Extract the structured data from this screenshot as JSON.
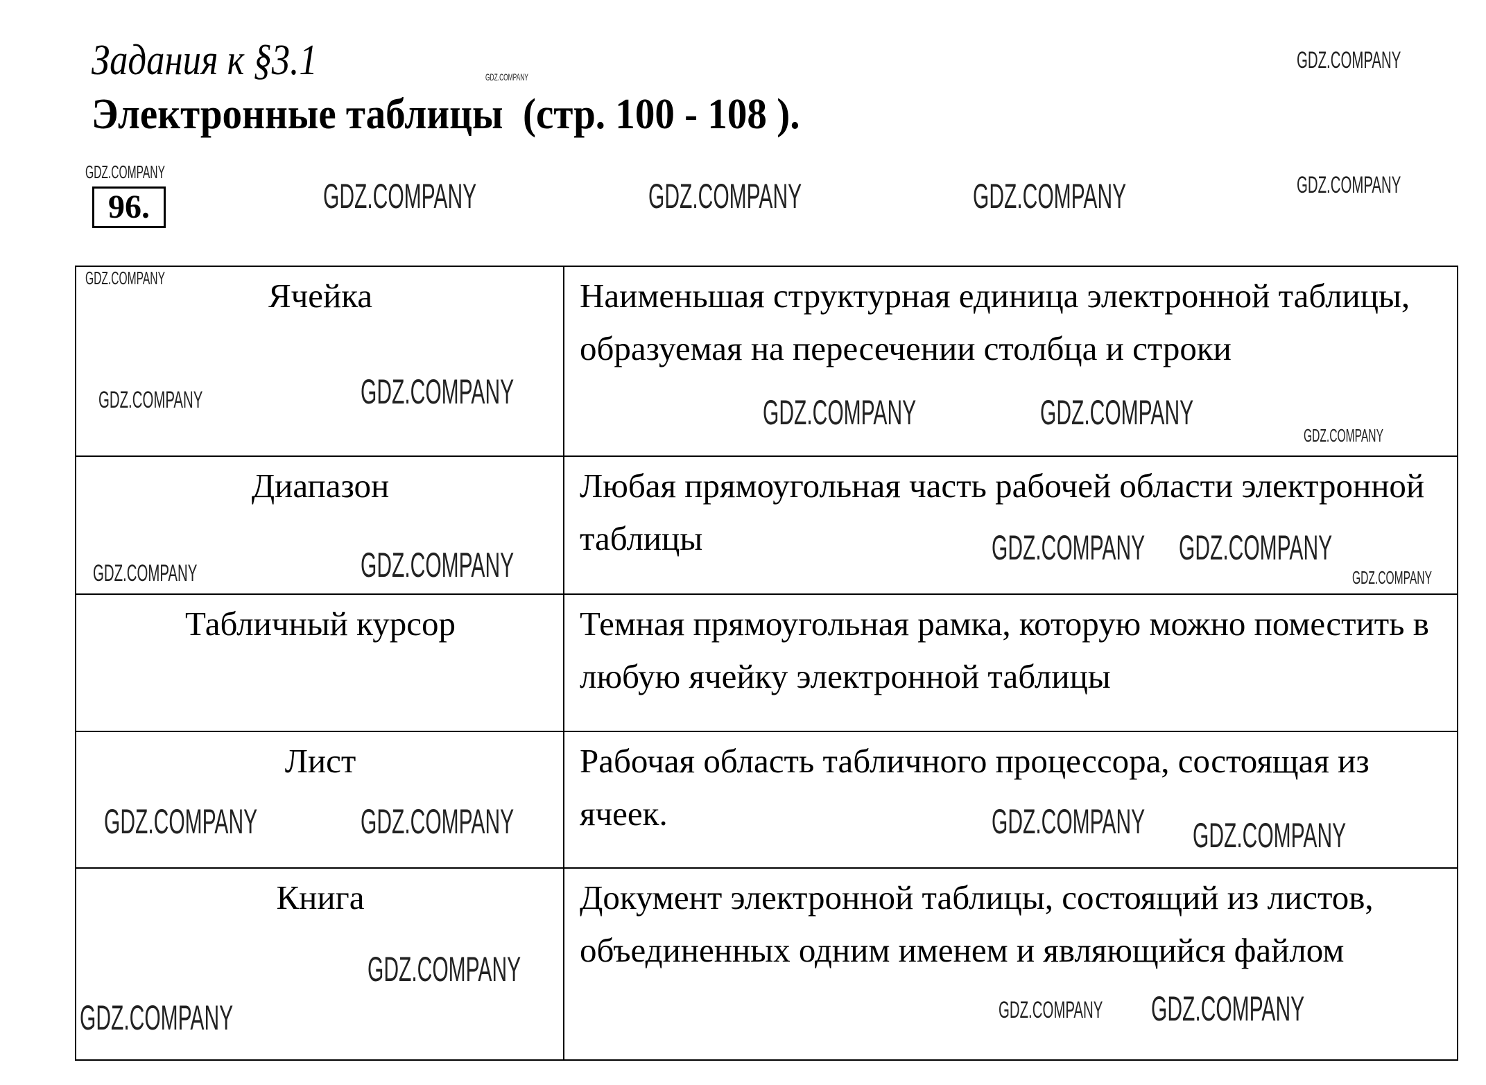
{
  "header": {
    "subtitle": "Задания к §3.1",
    "title": "Электронные таблицы  (стр. 100 - 108 ).",
    "task_number": "96."
  },
  "table": {
    "rows": [
      {
        "term": "Ячейка",
        "definition": "Наименьшая структурная единица электронной таблицы, образуемая на пересечении столбца и строки"
      },
      {
        "term": "Диапазон",
        "definition": "Любая прямоугольная часть рабочей области электронной таблицы"
      },
      {
        "term": "Табличный курсор",
        "definition": "Темная прямоугольная рамка, которую можно поместить в любую ячейку электронной таблицы"
      },
      {
        "term": "Лист",
        "definition": "Рабочая область табличного процессора, состоящая из ячеек."
      },
      {
        "term": "Книга",
        "definition": "Документ электронной таблицы, состоящий из листов, объединенных одним именем и являющийся файлом"
      }
    ]
  },
  "watermark": "GDZ.COMPANY"
}
